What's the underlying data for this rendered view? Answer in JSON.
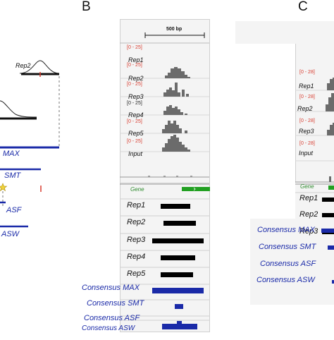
{
  "panels": {
    "b_letter": "B",
    "c_letter": "C"
  },
  "panel_a": {
    "rep_label": "Rep2",
    "consensus_labels": [
      "MAX",
      "SMT",
      "ASF",
      "ASW"
    ]
  },
  "panel_b": {
    "scale_bar_label": "500 bp",
    "tracks": [
      {
        "name": "Rep1",
        "range": "[0 - 25]",
        "range_color": "#d83a2e"
      },
      {
        "name": "Rep2",
        "range": "[0 - 25]",
        "range_color": "#d83a2e"
      },
      {
        "name": "Rep3",
        "range": "[0 - 25]",
        "range_color": "#d83a2e"
      },
      {
        "name": "Rep4",
        "range": "[0 - 25]",
        "range_color": "#222222"
      },
      {
        "name": "Rep5",
        "range": "[0 - 25]",
        "range_color": "#d83a2e"
      },
      {
        "name": "Input",
        "range": "[0 - 25]",
        "range_color": "#d83a2e"
      }
    ],
    "gene_label": "Gene",
    "rep_rows": [
      "Rep1",
      "Rep2",
      "Rep3",
      "Rep4",
      "Rep5"
    ],
    "consensus_rows": [
      "Consensus MAX",
      "Consensus SMT",
      "Consensus ASF",
      "Consensus ASW"
    ]
  },
  "panel_c": {
    "tracks": [
      {
        "name": "Rep1",
        "range": "[0 - 28]"
      },
      {
        "name": "Rep2",
        "range": "[0 - 28]"
      },
      {
        "name": "Rep3",
        "range": "[0 - 28]"
      },
      {
        "name": "Input",
        "range": "[0 - 28]"
      }
    ],
    "gene_label": "Gene",
    "rep_rows": [
      "Rep1",
      "Rep2",
      "Rep3"
    ],
    "consensus_rows": [
      "Consensus MAX",
      "Consensus SMT",
      "Consensus ASF",
      "Consensus ASW"
    ]
  },
  "colors": {
    "consensus_blue": "#1a2aa8",
    "peak_gray": "#6b6b6b",
    "gene_green": "#22a022",
    "range_red": "#d83a2e"
  }
}
